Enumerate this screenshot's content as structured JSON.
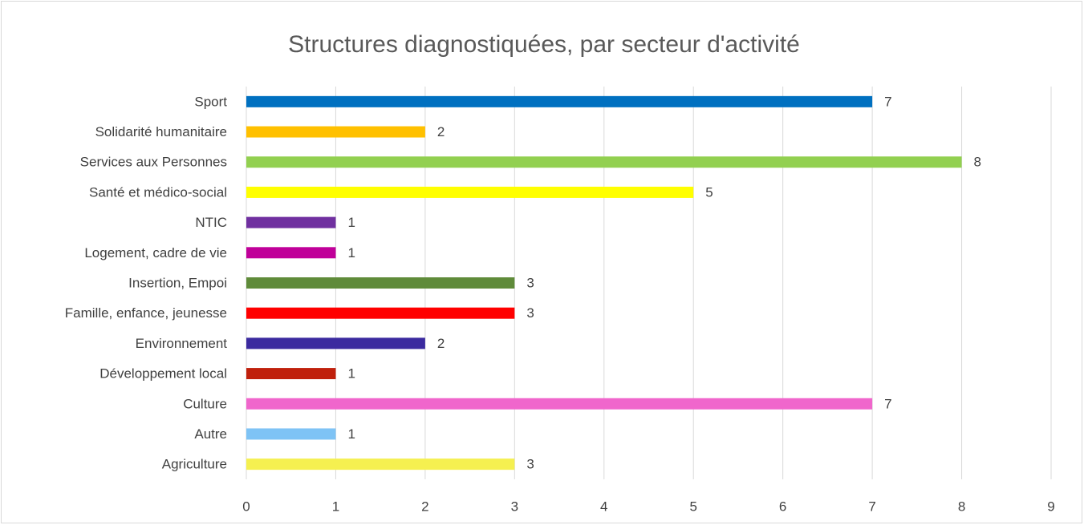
{
  "chart_data": {
    "type": "barh",
    "title": "Structures diagnostiquées, par secteur d'activité",
    "categories": [
      "Sport",
      "Solidarité humanitaire",
      "Services aux Personnes",
      "Santé et médico-social",
      "NTIC",
      "Logement, cadre de vie",
      "Insertion, Empoi",
      "Famille, enfance, jeunesse",
      "Environnement",
      "Développement local",
      "Culture",
      "Autre",
      "Agriculture"
    ],
    "values": [
      7,
      2,
      8,
      5,
      1,
      1,
      3,
      3,
      2,
      1,
      7,
      1,
      3
    ],
    "colors": [
      "#0070c0",
      "#ffc000",
      "#92d050",
      "#ffff00",
      "#7030a0",
      "#c00099",
      "#5f8b3a",
      "#ff0000",
      "#3b2a9f",
      "#c0200c",
      "#f066cc",
      "#7ec3f5",
      "#f5f050"
    ],
    "xlim": [
      0,
      9
    ],
    "xticks": [
      0,
      1,
      2,
      3,
      4,
      5,
      6,
      7,
      8,
      9
    ],
    "grid": true
  }
}
